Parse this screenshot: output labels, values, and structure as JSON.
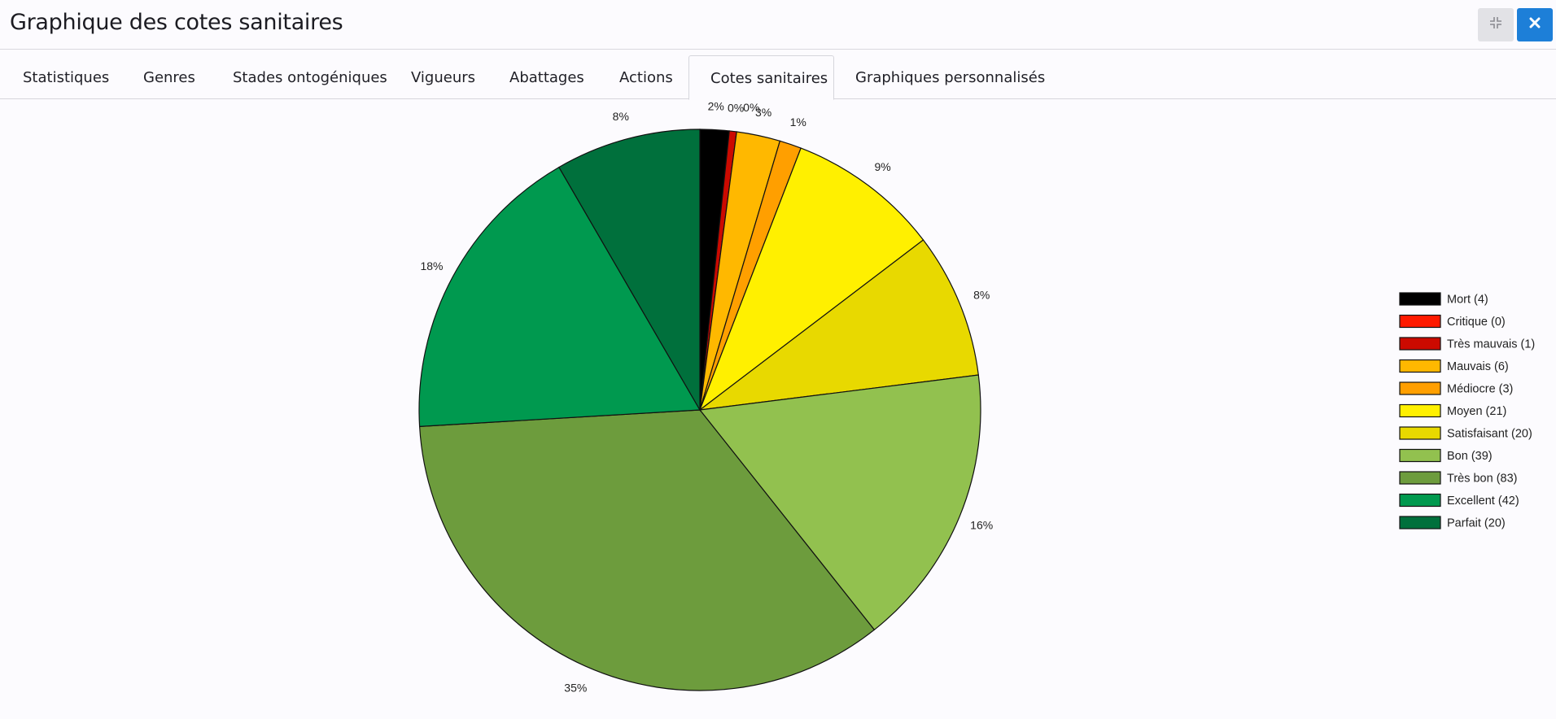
{
  "header": {
    "title": "Graphique des cotes sanitaires",
    "collapse_icon": "compress-icon",
    "close_icon": "close-icon"
  },
  "tabs": [
    {
      "label": "Statistiques",
      "active": false
    },
    {
      "label": "Genres",
      "active": false
    },
    {
      "label": "Stades ontogéniques",
      "active": false
    },
    {
      "label": "Vigueurs",
      "active": false
    },
    {
      "label": "Abattages",
      "active": false
    },
    {
      "label": "Actions",
      "active": false
    },
    {
      "label": "Cotes sanitaires",
      "active": true
    },
    {
      "label": "Graphiques personnalisés",
      "active": false
    }
  ],
  "chart_data": {
    "type": "pie",
    "start_angle_deg": 0,
    "direction": "clockwise",
    "legend_position": "right",
    "slices": [
      {
        "label": "Mort",
        "value": 4,
        "color": "#000000",
        "percent_label": "2%"
      },
      {
        "label": "Critique",
        "value": 0,
        "color": "#ff1a00",
        "percent_label": "0%"
      },
      {
        "label": "Très mauvais",
        "value": 1,
        "color": "#cc0a00",
        "percent_label": "0%"
      },
      {
        "label": "Mauvais",
        "value": 6,
        "color": "#ffb800",
        "percent_label": "3%"
      },
      {
        "label": "Médiocre",
        "value": 3,
        "color": "#ff9f00",
        "percent_label": "1%"
      },
      {
        "label": "Moyen",
        "value": 21,
        "color": "#fff000",
        "percent_label": "9%"
      },
      {
        "label": "Satisfaisant",
        "value": 20,
        "color": "#e8d900",
        "percent_label": "8%"
      },
      {
        "label": "Bon",
        "value": 39,
        "color": "#92c14f",
        "percent_label": "16%"
      },
      {
        "label": "Très bon",
        "value": 83,
        "color": "#6d9c3d",
        "percent_label": "35%"
      },
      {
        "label": "Excellent",
        "value": 42,
        "color": "#00994f",
        "percent_label": "18%"
      },
      {
        "label": "Parfait",
        "value": 20,
        "color": "#00703c",
        "percent_label": "8%"
      }
    ],
    "legend": [
      "Mort (4)",
      "Critique (0)",
      "Très mauvais (1)",
      "Mauvais (6)",
      "Médiocre (3)",
      "Moyen (21)",
      "Satisfaisant (20)",
      "Bon (39)",
      "Très bon (83)",
      "Excellent (42)",
      "Parfait (20)"
    ]
  }
}
